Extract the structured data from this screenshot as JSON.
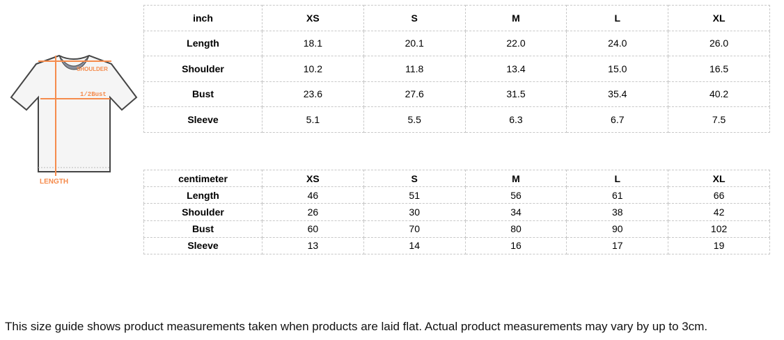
{
  "diagram": {
    "shoulder": "SHOULDER",
    "bust": "1/2Bust",
    "length": "LENGTH",
    "accent": "#f58b4c"
  },
  "inch_table": {
    "header": [
      "inch",
      "XS",
      "S",
      "M",
      "L",
      "XL"
    ],
    "rows": [
      [
        "Length",
        "18.1",
        "20.1",
        "22.0",
        "24.0",
        "26.0"
      ],
      [
        "Shoulder",
        "10.2",
        "11.8",
        "13.4",
        "15.0",
        "16.5"
      ],
      [
        "Bust",
        "23.6",
        "27.6",
        "31.5",
        "35.4",
        "40.2"
      ],
      [
        "Sleeve",
        "5.1",
        "5.5",
        "6.3",
        "6.7",
        "7.5"
      ]
    ]
  },
  "cm_table": {
    "header": [
      "centimeter",
      "XS",
      "S",
      "M",
      "L",
      "XL"
    ],
    "rows": [
      [
        "Length",
        "46",
        "51",
        "56",
        "61",
        "66"
      ],
      [
        "Shoulder",
        "26",
        "30",
        "34",
        "38",
        "42"
      ],
      [
        "Bust",
        "60",
        "70",
        "80",
        "90",
        "102"
      ],
      [
        "Sleeve",
        "13",
        "14",
        "16",
        "17",
        "19"
      ]
    ]
  },
  "note": "This size guide shows product measurements taken when products are laid flat. Actual product measurements may vary by up to 3cm."
}
